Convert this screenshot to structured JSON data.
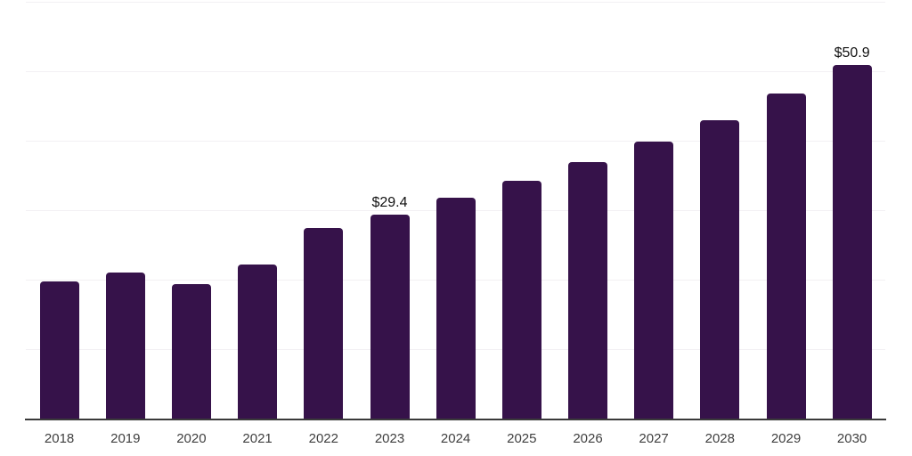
{
  "chart_data": {
    "type": "bar",
    "title": "",
    "xlabel": "",
    "ylabel": "",
    "categories": [
      "2018",
      "2019",
      "2020",
      "2021",
      "2022",
      "2023",
      "2024",
      "2025",
      "2026",
      "2027",
      "2028",
      "2029",
      "2030"
    ],
    "values": [
      19.8,
      21.0,
      19.4,
      22.2,
      27.5,
      29.4,
      31.8,
      34.2,
      36.9,
      39.9,
      43.0,
      46.8,
      50.9
    ],
    "data_labels": [
      {
        "category": "2023",
        "text": "$29.4"
      },
      {
        "category": "2030",
        "text": "$50.9"
      }
    ],
    "ylim": [
      0,
      60
    ],
    "gridline_values": [
      10,
      20,
      30,
      40,
      50,
      60
    ],
    "grid": "horizontal",
    "y_axis_labels_visible": false,
    "legend_position": "none",
    "colors": {
      "bar": "#36124a",
      "gridline": "#f2f0f3",
      "axis_line": "#3a3a3a",
      "tick_label": "#3f3f3f",
      "data_label": "#111111",
      "background": "#ffffff"
    }
  }
}
